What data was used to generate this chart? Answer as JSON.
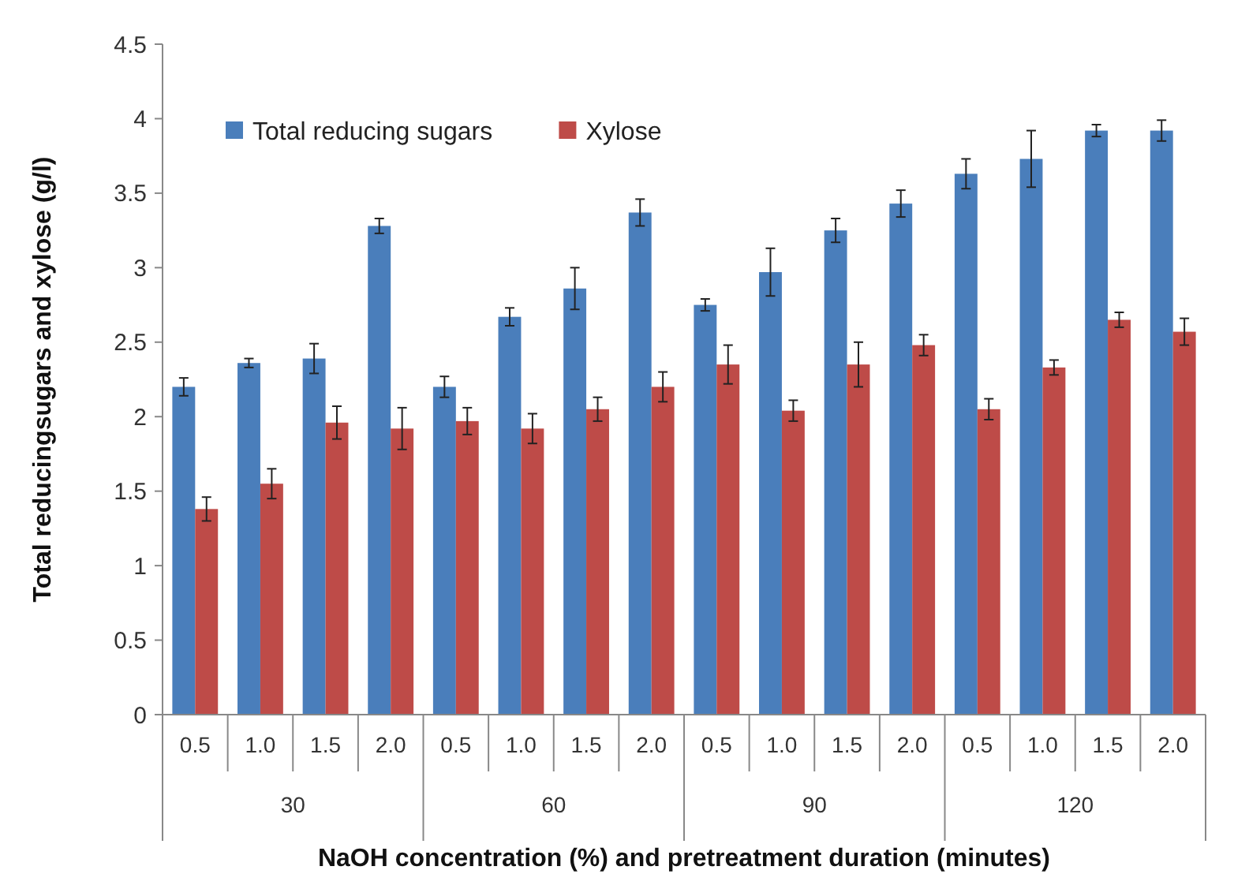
{
  "chart_data": {
    "type": "bar",
    "xlabel": "NaOH concentration (%)  and pretreatment duration (minutes)",
    "ylabel": "Total reducingsugars and xylose (g/l)",
    "categories": [
      "0.5",
      "1.0",
      "1.5",
      "2.0",
      "0.5",
      "1.0",
      "1.5",
      "2.0",
      "0.5",
      "1.0",
      "1.5",
      "2.0",
      "0.5",
      "1.0",
      "1.5",
      "2.0"
    ],
    "annotations": [
      "30",
      "60",
      "90",
      "120"
    ],
    "series": [
      {
        "name": "Total reducing sugars",
        "color": "#4a7ebb",
        "values": [
          2.2,
          2.36,
          2.39,
          3.28,
          2.2,
          2.67,
          2.86,
          3.37,
          2.75,
          2.97,
          3.25,
          3.43,
          3.63,
          3.73,
          3.92,
          3.92
        ],
        "errors": [
          0.06,
          0.03,
          0.1,
          0.05,
          0.07,
          0.06,
          0.14,
          0.09,
          0.04,
          0.16,
          0.08,
          0.09,
          0.1,
          0.19,
          0.04,
          0.07
        ]
      },
      {
        "name": "Xylose",
        "color": "#be4b48",
        "values": [
          1.38,
          1.55,
          1.96,
          1.92,
          1.97,
          1.92,
          2.05,
          2.2,
          2.35,
          2.04,
          2.35,
          2.48,
          2.05,
          2.33,
          2.65,
          2.57
        ],
        "errors": [
          0.08,
          0.1,
          0.11,
          0.14,
          0.09,
          0.1,
          0.08,
          0.1,
          0.13,
          0.07,
          0.15,
          0.07,
          0.07,
          0.05,
          0.05,
          0.09
        ]
      }
    ],
    "ylim": [
      0,
      4.5
    ],
    "yticks": [
      0,
      0.5,
      1,
      1.5,
      2,
      2.5,
      3,
      3.5,
      4,
      4.5
    ],
    "legend": "top left",
    "grid": false
  }
}
